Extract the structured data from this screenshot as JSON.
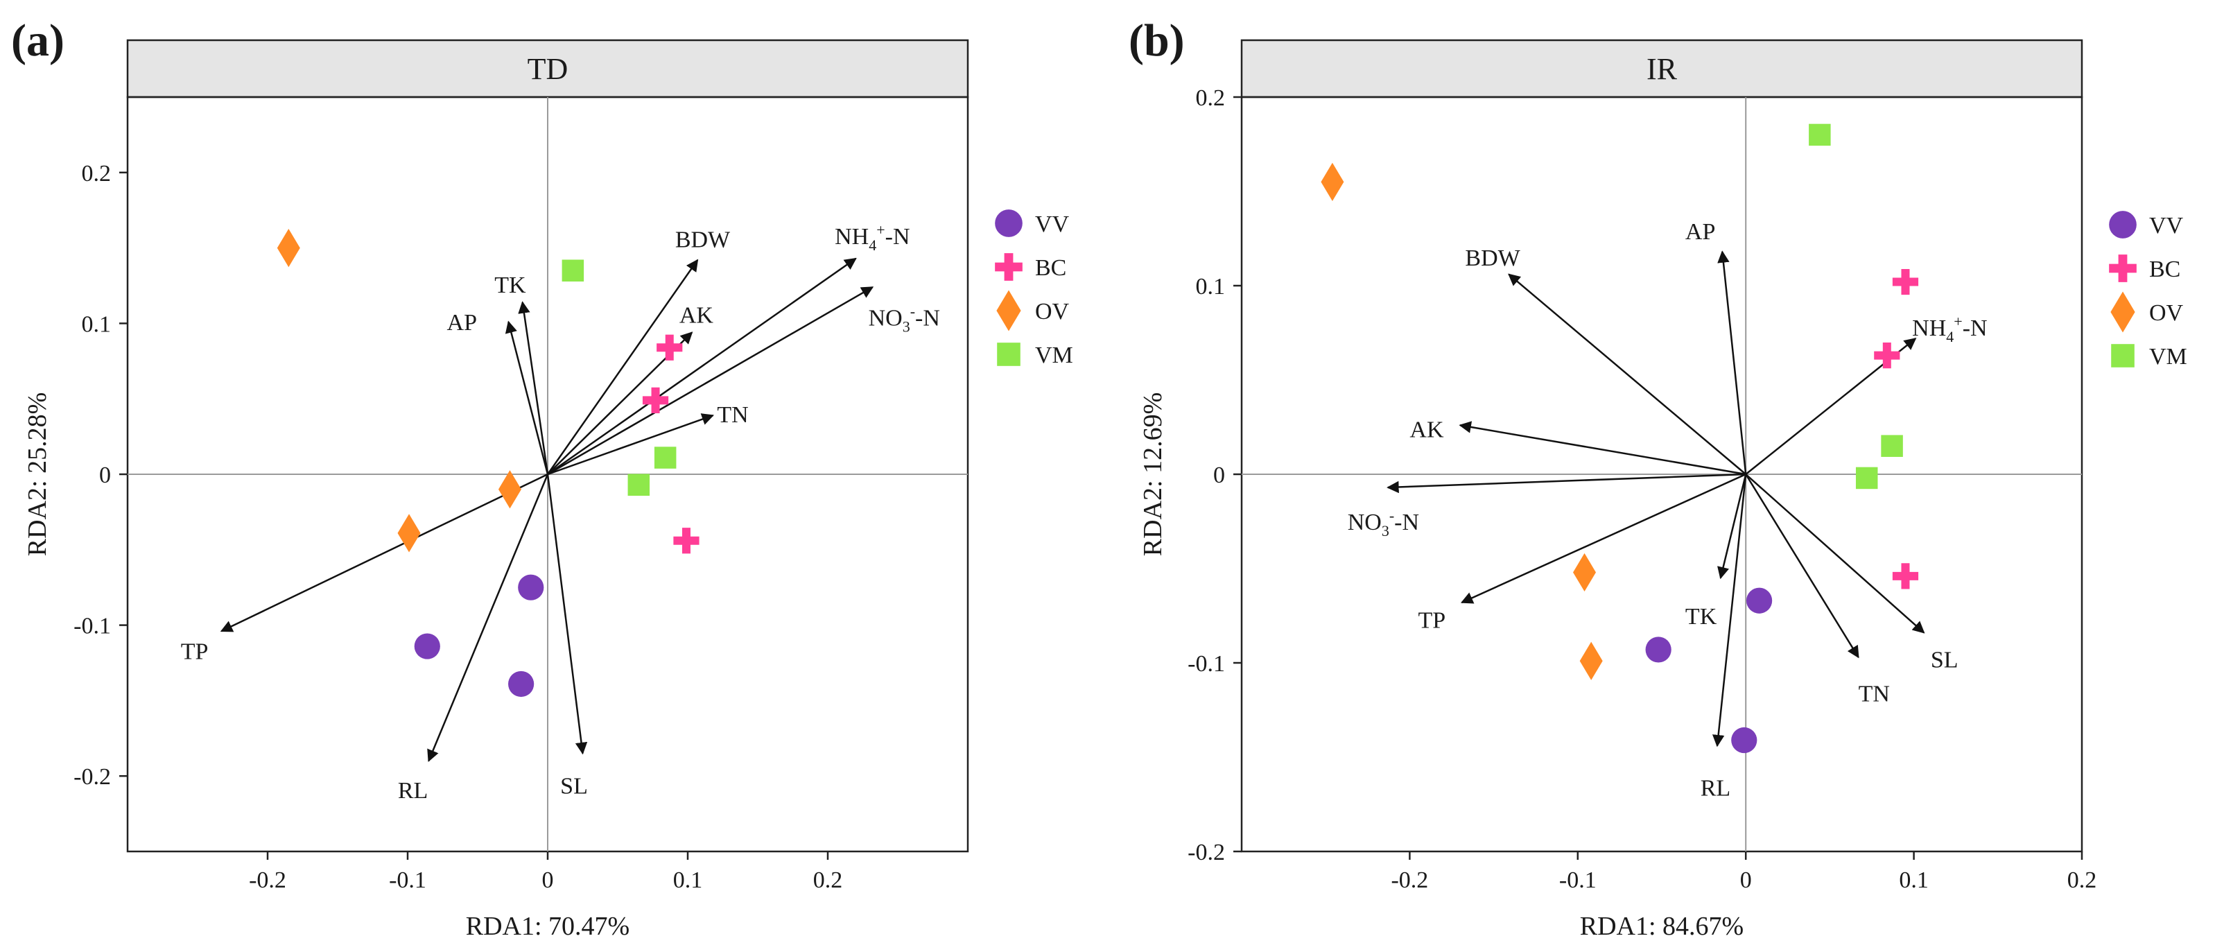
{
  "chart_data": [
    {
      "type": "scatter",
      "panel_label": "(a)",
      "title": "TD",
      "xlabel": "RDA1: 70.47%",
      "ylabel": "RDA2: 25.28%",
      "xlim": [
        -0.3,
        0.3
      ],
      "ylim": [
        -0.25,
        0.25
      ],
      "xticks": [
        {
          "value": -0.2,
          "label": "-0.2"
        },
        {
          "value": -0.1,
          "label": "-0.1"
        },
        {
          "value": 0,
          "label": "0"
        },
        {
          "value": 0.1,
          "label": "0.1"
        },
        {
          "value": 0.2,
          "label": "0.2"
        }
      ],
      "yticks": [
        {
          "value": -0.2,
          "label": "-0.2"
        },
        {
          "value": -0.1,
          "label": "-0.1"
        },
        {
          "value": 0,
          "label": "0"
        },
        {
          "value": 0.1,
          "label": "0.1"
        },
        {
          "value": 0.2,
          "label": "0.2"
        }
      ],
      "arrows": [
        {
          "label": "NH",
          "sub": "4",
          "sup": "+",
          "tail": "-N",
          "x": 0.22,
          "y": 0.143,
          "lx": 0.205,
          "ly": 0.158
        },
        {
          "label": "NO",
          "sub": "3",
          "sup": "-",
          "tail": "-N",
          "x": 0.232,
          "y": 0.124,
          "lx": 0.229,
          "ly": 0.104
        },
        {
          "label": "BDW",
          "x": 0.107,
          "y": 0.142,
          "lx": 0.091,
          "ly": 0.156
        },
        {
          "label": "AK",
          "x": 0.103,
          "y": 0.094,
          "lx": 0.094,
          "ly": 0.106
        },
        {
          "label": "TN",
          "x": 0.118,
          "y": 0.039,
          "lx": 0.121,
          "ly": 0.04
        },
        {
          "label": "TK",
          "x": -0.018,
          "y": 0.114,
          "lx": -0.038,
          "ly": 0.126
        },
        {
          "label": "AP",
          "x": -0.028,
          "y": 0.101,
          "lx": -0.072,
          "ly": 0.101
        },
        {
          "label": "TP",
          "x": -0.233,
          "y": -0.104,
          "lx": -0.262,
          "ly": -0.117
        },
        {
          "label": "RL",
          "x": -0.085,
          "y": -0.19,
          "lx": -0.107,
          "ly": -0.209
        },
        {
          "label": "SL",
          "x": 0.025,
          "y": -0.185,
          "lx": 0.009,
          "ly": -0.206
        }
      ],
      "series": [
        {
          "name": "VV",
          "marker": "circle",
          "color": "#7a3db8",
          "points": [
            [
              -0.012,
              -0.075
            ],
            [
              -0.086,
              -0.114
            ],
            [
              -0.019,
              -0.139
            ]
          ]
        },
        {
          "name": "BC",
          "marker": "plus",
          "color": "#ff3d96",
          "points": [
            [
              0.087,
              0.084
            ],
            [
              0.077,
              0.049
            ],
            [
              0.099,
              -0.044
            ]
          ]
        },
        {
          "name": "OV",
          "marker": "diamond",
          "color": "#ff8a24",
          "points": [
            [
              -0.185,
              0.15
            ],
            [
              -0.027,
              -0.01
            ],
            [
              -0.099,
              -0.039
            ]
          ]
        },
        {
          "name": "VM",
          "marker": "square",
          "color": "#8ee84a",
          "points": [
            [
              0.018,
              0.135
            ],
            [
              0.084,
              0.011
            ],
            [
              0.065,
              -0.007
            ]
          ]
        }
      ]
    },
    {
      "type": "scatter",
      "panel_label": "(b)",
      "title": "IR",
      "xlabel": "RDA1: 84.67%",
      "ylabel": "RDA2: 12.69%",
      "xlim": [
        -0.3,
        0.2
      ],
      "ylim": [
        -0.2,
        0.2
      ],
      "xticks": [
        {
          "value": -0.2,
          "label": "-0.2"
        },
        {
          "value": -0.1,
          "label": "-0.1"
        },
        {
          "value": 0,
          "label": "0"
        },
        {
          "value": 0.1,
          "label": "0.1"
        },
        {
          "value": 0.2,
          "label": "0.2"
        }
      ],
      "yticks": [
        {
          "value": -0.2,
          "label": "-0.2"
        },
        {
          "value": -0.1,
          "label": "-0.1"
        },
        {
          "value": 0,
          "label": "0"
        },
        {
          "value": 0.1,
          "label": "0.1"
        },
        {
          "value": 0.2,
          "label": "0.2"
        }
      ],
      "arrows": [
        {
          "label": "AP",
          "x": -0.014,
          "y": 0.118,
          "lx": -0.036,
          "ly": 0.129
        },
        {
          "label": "BDW",
          "x": -0.141,
          "y": 0.106,
          "lx": -0.167,
          "ly": 0.115
        },
        {
          "label": "NH",
          "sub": "4",
          "sup": "+",
          "tail": "-N",
          "x": 0.101,
          "y": 0.072,
          "lx": 0.099,
          "ly": 0.078
        },
        {
          "label": "AK",
          "x": -0.17,
          "y": 0.026,
          "lx": -0.2,
          "ly": 0.024
        },
        {
          "label": "NO",
          "sub": "3",
          "sup": "-",
          "tail": "-N",
          "x": -0.213,
          "y": -0.007,
          "lx": -0.237,
          "ly": -0.025
        },
        {
          "label": "TP",
          "x": -0.169,
          "y": -0.068,
          "lx": -0.195,
          "ly": -0.077
        },
        {
          "label": "TK",
          "x": -0.015,
          "y": -0.055,
          "lx": -0.036,
          "ly": -0.075
        },
        {
          "label": "TN",
          "x": 0.067,
          "y": -0.097,
          "lx": 0.067,
          "ly": -0.116
        },
        {
          "label": "SL",
          "x": 0.106,
          "y": -0.084,
          "lx": 0.11,
          "ly": -0.098
        },
        {
          "label": "RL",
          "x": -0.017,
          "y": -0.144,
          "lx": -0.027,
          "ly": -0.166
        }
      ],
      "series": [
        {
          "name": "VV",
          "marker": "circle",
          "color": "#7a3db8",
          "points": [
            [
              0.008,
              -0.067
            ],
            [
              -0.052,
              -0.093
            ],
            [
              -0.001,
              -0.141
            ]
          ]
        },
        {
          "name": "BC",
          "marker": "plus",
          "color": "#ff3d96",
          "points": [
            [
              0.095,
              0.102
            ],
            [
              0.084,
              0.063
            ],
            [
              0.095,
              -0.054
            ]
          ]
        },
        {
          "name": "OV",
          "marker": "diamond",
          "color": "#ff8a24",
          "points": [
            [
              -0.246,
              0.155
            ],
            [
              -0.096,
              -0.052
            ],
            [
              -0.092,
              -0.099
            ]
          ]
        },
        {
          "name": "VM",
          "marker": "square",
          "color": "#8ee84a",
          "points": [
            [
              0.044,
              0.18
            ],
            [
              0.087,
              0.015
            ],
            [
              0.072,
              -0.002
            ]
          ]
        }
      ]
    }
  ]
}
